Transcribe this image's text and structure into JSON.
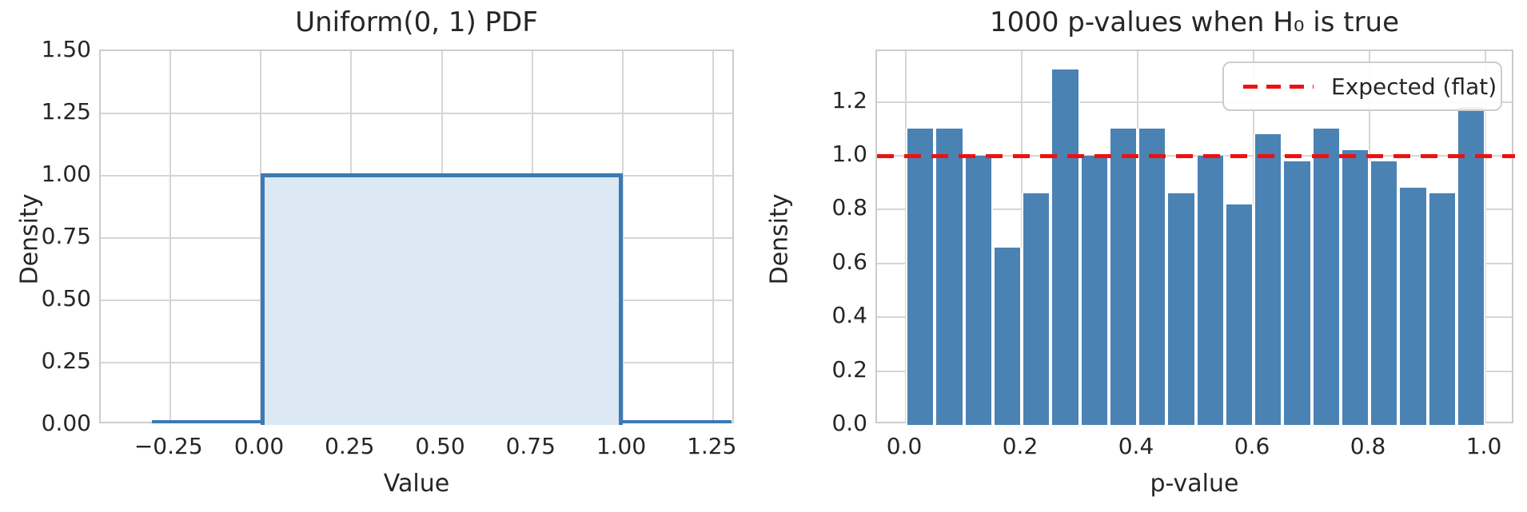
{
  "figure": {
    "background": "#ffffff",
    "text_color": "#262626",
    "grid_color": "#d6d6d6",
    "spine_color": "#cccccc"
  },
  "chart_data": [
    {
      "type": "area",
      "title": "Uniform(0, 1) PDF",
      "xlabel": "Value",
      "ylabel": "Density",
      "xlim": [
        -0.44,
        1.31
      ],
      "ylim": [
        0,
        1.5
      ],
      "grid": true,
      "x_tick_values": [
        -0.25,
        0.0,
        0.25,
        0.5,
        0.75,
        1.0,
        1.25
      ],
      "x_tick_labels": [
        "−0.25",
        "0.00",
        "0.25",
        "0.50",
        "0.75",
        "1.00",
        "1.25"
      ],
      "y_tick_values": [
        0.0,
        0.25,
        0.5,
        0.75,
        1.0,
        1.25,
        1.5
      ],
      "y_tick_labels": [
        "0.00",
        "0.25",
        "0.50",
        "0.75",
        "1.00",
        "1.25",
        "1.50"
      ],
      "line_x": [
        -0.3,
        0.0,
        0.0,
        1.0,
        1.0,
        1.3
      ],
      "line_y": [
        0.0,
        0.0,
        1.0,
        1.0,
        0.0,
        0.0
      ],
      "fill_between": {
        "x0": 0.0,
        "x1": 1.0,
        "y": 1.0
      },
      "line_color": "#3c79b5",
      "fill_color": "#dce8f3"
    },
    {
      "type": "bar",
      "title": "1000 p-values when H₀ is true",
      "xlabel": "p-value",
      "ylabel": "Density",
      "xlim": [
        -0.05,
        1.05
      ],
      "ylim": [
        0,
        1.39
      ],
      "grid": true,
      "x_tick_values": [
        0.0,
        0.2,
        0.4,
        0.6,
        0.8,
        1.0
      ],
      "x_tick_labels": [
        "0.0",
        "0.2",
        "0.4",
        "0.6",
        "0.8",
        "1.0"
      ],
      "y_tick_values": [
        0.0,
        0.2,
        0.4,
        0.6,
        0.8,
        1.0,
        1.2
      ],
      "y_tick_labels": [
        "0.0",
        "0.2",
        "0.4",
        "0.6",
        "0.8",
        "1.0",
        "1.2"
      ],
      "n_samples": 1000,
      "bin_start": 0.0,
      "bin_width": 0.05,
      "densities": [
        1.1,
        1.1,
        1.0,
        0.66,
        0.86,
        1.32,
        1.0,
        1.1,
        1.1,
        0.86,
        1.0,
        0.82,
        1.08,
        0.98,
        1.1,
        1.02,
        0.98,
        0.88,
        0.86,
        1.18
      ],
      "counts": [
        55,
        55,
        50,
        33,
        43,
        66,
        50,
        55,
        55,
        43,
        50,
        41,
        54,
        49,
        55,
        51,
        49,
        44,
        43,
        59
      ],
      "bar_color": "#4a82b4",
      "bar_edge_color": "#ffffff",
      "reference_line": {
        "y": 1.0,
        "color": "#ee1111",
        "style": "dashed"
      },
      "legend": {
        "position": "upper right",
        "label": "Expected (flat)",
        "line_color": "#ee1111",
        "line_style": "dashed"
      }
    }
  ]
}
